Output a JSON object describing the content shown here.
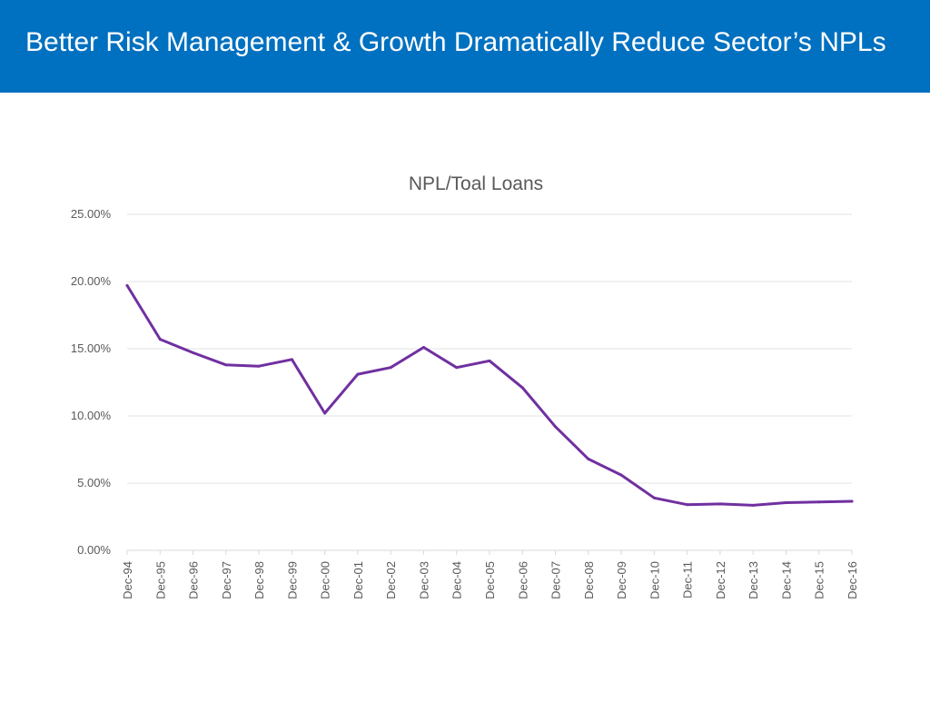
{
  "slide": {
    "title": "Better Risk Management & Growth Dramatically Reduce Sector’s NPLs",
    "title_bar_color": "#0070c0"
  },
  "chart_data": {
    "type": "line",
    "title": "NPL/Toal Loans",
    "xlabel": "",
    "ylabel": "",
    "categories": [
      "Dec-94",
      "Dec-95",
      "Dec-96",
      "Dec-97",
      "Dec-98",
      "Dec-99",
      "Dec-00",
      "Dec-01",
      "Dec-02",
      "Dec-03",
      "Dec-04",
      "Dec-05",
      "Dec-06",
      "Dec-07",
      "Dec-08",
      "Dec-09",
      "Dec-10",
      "Dec-11",
      "Dec-12",
      "Dec-13",
      "Dec-14",
      "Dec-15",
      "Dec-16"
    ],
    "series": [
      {
        "name": "NPL/Total Loans",
        "color": "#7030a0",
        "values": [
          19.7,
          15.7,
          14.7,
          13.8,
          13.7,
          14.2,
          10.2,
          13.1,
          13.6,
          15.1,
          13.6,
          14.1,
          12.1,
          9.2,
          6.8,
          5.6,
          3.9,
          3.4,
          3.45,
          3.35,
          3.55,
          3.6,
          3.65
        ]
      }
    ],
    "ylim": [
      0,
      25
    ],
    "yticks": [
      0,
      5,
      10,
      15,
      20,
      25
    ],
    "ytick_labels": [
      "0.00%",
      "5.00%",
      "10.00%",
      "15.00%",
      "20.00%",
      "25.00%"
    ],
    "grid": true,
    "legend": "none"
  }
}
